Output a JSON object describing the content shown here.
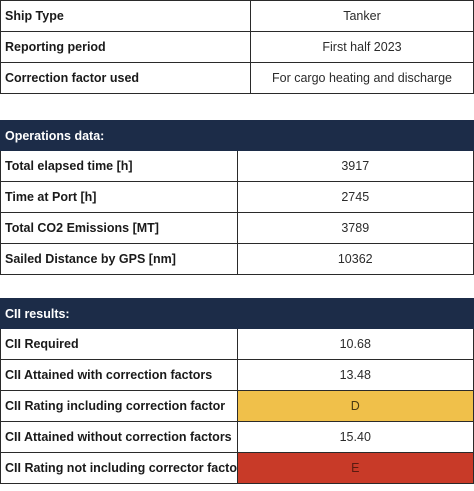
{
  "ship_info": [
    {
      "label": "Ship Type",
      "value": "Tanker"
    },
    {
      "label": "Reporting period",
      "value": "First half 2023"
    },
    {
      "label": "Correction factor used",
      "value": "For cargo heating and discharge"
    }
  ],
  "operations": {
    "header": "Operations data:",
    "rows": [
      {
        "label": "Total elapsed time [h]",
        "value": "3917"
      },
      {
        "label": "Time at Port [h]",
        "value": "2745"
      },
      {
        "label": "Total CO2 Emissions [MT]",
        "value": "3789"
      },
      {
        "label": "Sailed Distance by GPS [nm]",
        "value": "10362"
      }
    ]
  },
  "results": {
    "header": "CII results:",
    "rows": [
      {
        "label": "CII Required",
        "value": "10.68"
      },
      {
        "label": "CII Attained with correction factors",
        "value": "13.48"
      },
      {
        "label": "CII Rating including correction factor",
        "value": "D"
      },
      {
        "label": "CII Attained without correction factors",
        "value": "15.40"
      },
      {
        "label": "CII Rating not including corrector factor",
        "value": "E"
      }
    ]
  },
  "colors": {
    "header_bg": "#1c2c48",
    "rating_d": "#f0c04a",
    "rating_e": "#c83a28"
  }
}
